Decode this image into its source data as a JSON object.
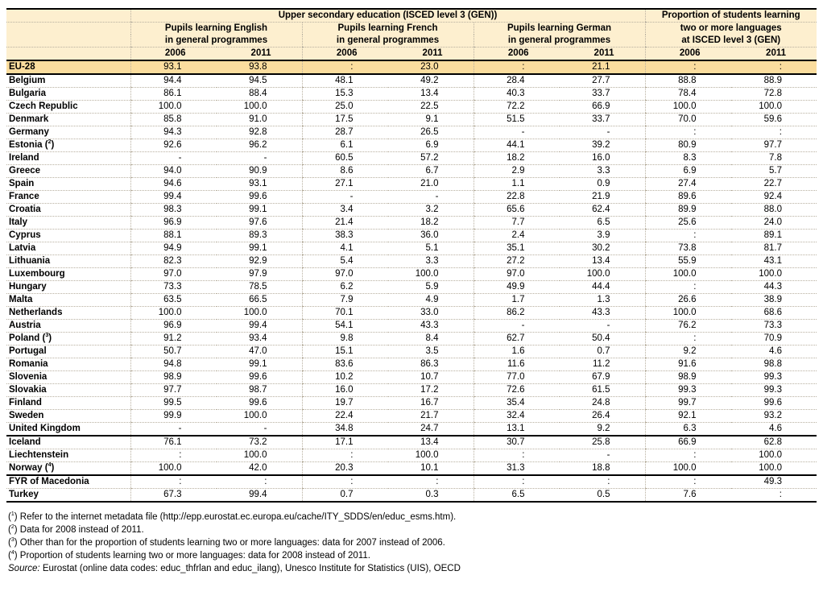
{
  "header": {
    "group_title": "Upper secondary education (ISCED level 3 (GEN))",
    "english_l1": "Pupils learning English",
    "english_l2": "in general programmes",
    "french_l1": "Pupils learning French",
    "french_l2": "in general programmes",
    "german_l1": "Pupils learning German",
    "german_l2": "in general programmes",
    "prop_l1": "Proportion of students learning",
    "prop_l2": "two or more languages",
    "prop_l3": "at ISCED level 3 (GEN)",
    "years": [
      "2006",
      "2011",
      "2006",
      "2011",
      "2006",
      "2011",
      "2006",
      "2011"
    ]
  },
  "rows": [
    {
      "name": "EU-28",
      "note": "",
      "values": [
        "93.1",
        "93.8",
        ":",
        "23.0",
        ":",
        "21.1",
        ":",
        ":"
      ]
    },
    {
      "name": "Belgium",
      "note": "",
      "values": [
        "94.4",
        "94.5",
        "48.1",
        "49.2",
        "28.4",
        "27.7",
        "88.8",
        "88.9"
      ]
    },
    {
      "name": "Bulgaria",
      "note": "",
      "values": [
        "86.1",
        "88.4",
        "15.3",
        "13.4",
        "40.3",
        "33.7",
        "78.4",
        "72.8"
      ]
    },
    {
      "name": "Czech Republic",
      "note": "",
      "values": [
        "100.0",
        "100.0",
        "25.0",
        "22.5",
        "72.2",
        "66.9",
        "100.0",
        "100.0"
      ]
    },
    {
      "name": "Denmark",
      "note": "",
      "values": [
        "85.8",
        "91.0",
        "17.5",
        "9.1",
        "51.5",
        "33.7",
        "70.0",
        "59.6"
      ]
    },
    {
      "name": "Germany",
      "note": "",
      "values": [
        "94.3",
        "92.8",
        "28.7",
        "26.5",
        "-",
        "-",
        ":",
        ":"
      ]
    },
    {
      "name": "Estonia",
      "note": "2",
      "values": [
        "92.6",
        "96.2",
        "6.1",
        "6.9",
        "44.1",
        "39.2",
        "80.9",
        "97.7"
      ]
    },
    {
      "name": "Ireland",
      "note": "",
      "values": [
        "-",
        "-",
        "60.5",
        "57.2",
        "18.2",
        "16.0",
        "8.3",
        "7.8"
      ]
    },
    {
      "name": "Greece",
      "note": "",
      "values": [
        "94.0",
        "90.9",
        "8.6",
        "6.7",
        "2.9",
        "3.3",
        "6.9",
        "5.7"
      ]
    },
    {
      "name": "Spain",
      "note": "",
      "values": [
        "94.6",
        "93.1",
        "27.1",
        "21.0",
        "1.1",
        "0.9",
        "27.4",
        "22.7"
      ]
    },
    {
      "name": "France",
      "note": "",
      "values": [
        "99.4",
        "99.6",
        "-",
        "-",
        "22.8",
        "21.9",
        "89.6",
        "92.4"
      ]
    },
    {
      "name": "Croatia",
      "note": "",
      "values": [
        "98.3",
        "99.1",
        "3.4",
        "3.2",
        "65.6",
        "62.4",
        "89.9",
        "88.0"
      ]
    },
    {
      "name": "Italy",
      "note": "",
      "values": [
        "96.9",
        "97.6",
        "21.4",
        "18.2",
        "7.7",
        "6.5",
        "25.6",
        "24.0"
      ]
    },
    {
      "name": "Cyprus",
      "note": "",
      "values": [
        "88.1",
        "89.3",
        "38.3",
        "36.0",
        "2.4",
        "3.9",
        ":",
        "89.1"
      ]
    },
    {
      "name": "Latvia",
      "note": "",
      "values": [
        "94.9",
        "99.1",
        "4.1",
        "5.1",
        "35.1",
        "30.2",
        "73.8",
        "81.7"
      ]
    },
    {
      "name": "Lithuania",
      "note": "",
      "values": [
        "82.3",
        "92.9",
        "5.4",
        "3.3",
        "27.2",
        "13.4",
        "55.9",
        "43.1"
      ]
    },
    {
      "name": "Luxembourg",
      "note": "",
      "values": [
        "97.0",
        "97.9",
        "97.0",
        "100.0",
        "97.0",
        "100.0",
        "100.0",
        "100.0"
      ]
    },
    {
      "name": "Hungary",
      "note": "",
      "values": [
        "73.3",
        "78.5",
        "6.2",
        "5.9",
        "49.9",
        "44.4",
        ":",
        "44.3"
      ]
    },
    {
      "name": "Malta",
      "note": "",
      "values": [
        "63.5",
        "66.5",
        "7.9",
        "4.9",
        "1.7",
        "1.3",
        "26.6",
        "38.9"
      ]
    },
    {
      "name": "Netherlands",
      "note": "",
      "values": [
        "100.0",
        "100.0",
        "70.1",
        "33.0",
        "86.2",
        "43.3",
        "100.0",
        "68.6"
      ]
    },
    {
      "name": "Austria",
      "note": "",
      "values": [
        "96.9",
        "99.4",
        "54.1",
        "43.3",
        "-",
        "-",
        "76.2",
        "73.3"
      ]
    },
    {
      "name": "Poland",
      "note": "3",
      "values": [
        "91.2",
        "93.4",
        "9.8",
        "8.4",
        "62.7",
        "50.4",
        ":",
        "70.9"
      ]
    },
    {
      "name": "Portugal",
      "note": "",
      "values": [
        "50.7",
        "47.0",
        "15.1",
        "3.5",
        "1.6",
        "0.7",
        "9.2",
        "4.6"
      ]
    },
    {
      "name": "Romania",
      "note": "",
      "values": [
        "94.8",
        "99.1",
        "83.6",
        "86.3",
        "11.6",
        "11.2",
        "91.6",
        "98.8"
      ]
    },
    {
      "name": "Slovenia",
      "note": "",
      "values": [
        "98.9",
        "99.6",
        "10.2",
        "10.7",
        "77.0",
        "67.9",
        "98.9",
        "99.3"
      ]
    },
    {
      "name": "Slovakia",
      "note": "",
      "values": [
        "97.7",
        "98.7",
        "16.0",
        "17.2",
        "72.6",
        "61.5",
        "99.3",
        "99.3"
      ]
    },
    {
      "name": "Finland",
      "note": "",
      "values": [
        "99.5",
        "99.6",
        "19.7",
        "16.7",
        "35.4",
        "24.8",
        "99.7",
        "99.6"
      ]
    },
    {
      "name": "Sweden",
      "note": "",
      "values": [
        "99.9",
        "100.0",
        "22.4",
        "21.7",
        "32.4",
        "26.4",
        "92.1",
        "93.2"
      ]
    },
    {
      "name": "United Kingdom",
      "note": "",
      "values": [
        "-",
        "-",
        "34.8",
        "24.7",
        "13.1",
        "9.2",
        "6.3",
        "4.6"
      ]
    },
    {
      "name": "Iceland",
      "note": "",
      "values": [
        "76.1",
        "73.2",
        "17.1",
        "13.4",
        "30.7",
        "25.8",
        "66.9",
        "62.8"
      ]
    },
    {
      "name": "Liechtenstein",
      "note": "",
      "values": [
        ":",
        "100.0",
        ":",
        "100.0",
        ":",
        "-",
        ":",
        "100.0"
      ]
    },
    {
      "name": "Norway",
      "note": "4",
      "values": [
        "100.0",
        "42.0",
        "20.3",
        "10.1",
        "31.3",
        "18.8",
        "100.0",
        "100.0"
      ]
    },
    {
      "name": "FYR of Macedonia",
      "note": "",
      "values": [
        ":",
        ":",
        ":",
        ":",
        ":",
        ":",
        ":",
        "49.3"
      ]
    },
    {
      "name": "Turkey",
      "note": "",
      "values": [
        "67.3",
        "99.4",
        "0.7",
        "0.3",
        "6.5",
        "0.5",
        "7.6",
        ":"
      ]
    }
  ],
  "notes": [
    {
      "num": "1",
      "text": " Refer to the internet metadata file (http://epp.eurostat.ec.europa.eu/cache/ITY_SDDS/en/educ_esms.htm)."
    },
    {
      "num": "2",
      "text": " Data for 2008 instead of 2011."
    },
    {
      "num": "3",
      "text": " Other than for the proportion of students learning two or more languages: data for 2007 instead of 2006."
    },
    {
      "num": "4",
      "text": " Proportion of students learning two or more languages: data for 2008 instead of 2011."
    }
  ],
  "source_label": "Source:",
  "source_text": " Eurostat (online data codes: educ_thfrlan and educ_ilang), Unesco Institute for Statistics (UIS), OECD",
  "colors": {
    "header_bg": "#fdefcf",
    "eu_row_bg": "#fbdd9e"
  }
}
